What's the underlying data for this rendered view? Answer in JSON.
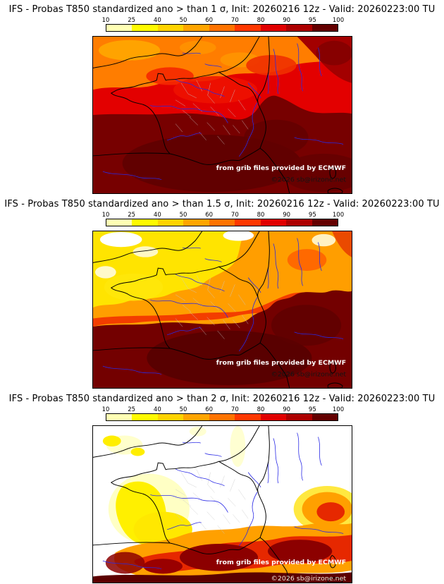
{
  "colorbar": {
    "tick_labels": [
      "10",
      "25",
      "40",
      "50",
      "60",
      "70",
      "80",
      "90",
      "95",
      "100"
    ],
    "segment_colors": [
      "#ffffb4",
      "#fffb00",
      "#ffd300",
      "#ffa500",
      "#ff7300",
      "#ff3800",
      "#e10000",
      "#ad0000",
      "#640000"
    ]
  },
  "panels": [
    {
      "title": "IFS - Probas T850  standardized ano > than 1 σ, Init: 20260216 12z - Valid: 20260223:00 TU",
      "threshold": "1 σ",
      "attribution1": "from grib files provided by ECMWF",
      "attribution2": "©2026 sb@irizone.net"
    },
    {
      "title": "IFS - Probas T850  standardized ano > than 1.5 σ, Init: 20260216 12z - Valid: 20260223:00 TU",
      "threshold": "1.5 σ",
      "attribution1": "from grib files provided by ECMWF",
      "attribution2": "©2026 sb@irizone.net"
    },
    {
      "title": "IFS - Probas T850  standardized ano > than 2 σ, Init: 20260216 12z - Valid: 20260223:00 TU",
      "threshold": "2 σ",
      "attribution1": "from grib files provided by ECMWF",
      "attribution2": "©2026 sb@irizone.net"
    }
  ]
}
